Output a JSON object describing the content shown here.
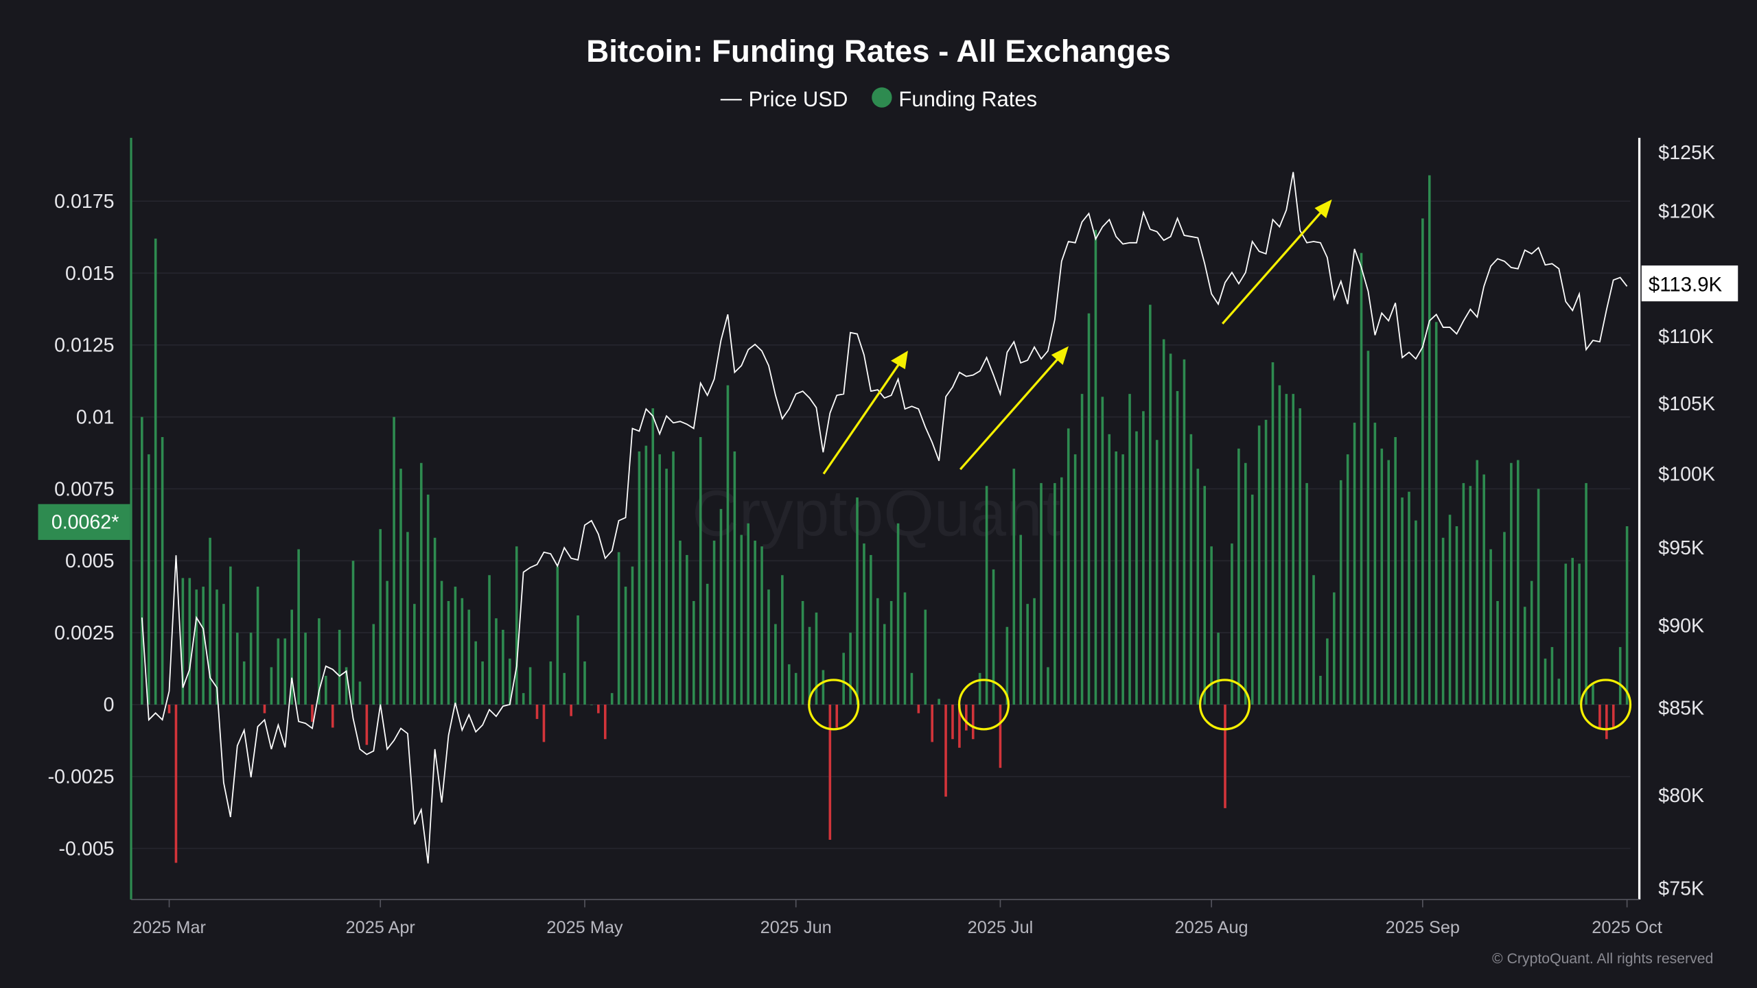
{
  "chart_data": {
    "type": "bar+line",
    "title": "Bitcoin: Funding Rates - All Exchanges",
    "legend": {
      "placement": "top-center",
      "entries": [
        "Price USD",
        "Funding Rates"
      ]
    },
    "series": [
      {
        "name": "Funding Rates",
        "type": "bar",
        "axis": "left",
        "color_positive": "#2e8b50",
        "color_negative": "#d2343a"
      },
      {
        "name": "Price USD",
        "type": "line",
        "axis": "right",
        "color": "#ffffff"
      }
    ],
    "left_axis": {
      "ticks": [
        0.0175,
        0.015,
        0.0125,
        0.01,
        0.0075,
        0.005,
        0.0025,
        0,
        -0.0025,
        -0.005
      ],
      "tick_labels": [
        "0.0175",
        "0.015",
        "0.0125",
        "0.01",
        "0.0075",
        "0.005",
        "0.0025",
        "0",
        "-0.0025",
        "-0.005"
      ],
      "range": [
        -0.0068,
        0.0194
      ]
    },
    "right_axis": {
      "scale": "log",
      "ticks": [
        125000,
        120000,
        110000,
        105000,
        100000,
        95000,
        90000,
        85000,
        80000,
        75000
      ],
      "tick_labels": [
        "$125K",
        "$120K",
        "$110K",
        "$105K",
        "$100K",
        "$95K",
        "$90K",
        "$85K",
        "$80K",
        "$75K"
      ],
      "range": [
        75000,
        125000
      ]
    },
    "x_axis": {
      "ticks": [
        "2025-03-01",
        "2025-04-01",
        "2025-05-01",
        "2025-06-01",
        "2025-07-01",
        "2025-08-01",
        "2025-09-01",
        "2025-10-01"
      ],
      "tick_labels": [
        "2025 Mar",
        "2025 Apr",
        "2025 May",
        "2025 Jun",
        "2025 Jul",
        "2025 Aug",
        "2025 Sep",
        "2025 Oct"
      ]
    },
    "grid": true,
    "current_funding_label": "0.0062*",
    "current_price_label": "$113.9K",
    "watermark": "CryptoQuant",
    "copyright": "© CryptoQuant. All rights reserved",
    "annotation_color": "#f5f000",
    "columns": [
      "date",
      "funding_rate",
      "price_usd"
    ],
    "points": [
      [
        "2025-02-25",
        0.01,
        90500
      ],
      [
        "2025-02-26",
        0.0087,
        84300
      ],
      [
        "2025-02-27",
        0.0162,
        84700
      ],
      [
        "2025-02-28",
        0.0093,
        84300
      ],
      [
        "2025-03-01",
        -0.0003,
        86000
      ],
      [
        "2025-03-02",
        -0.0055,
        94500
      ],
      [
        "2025-03-03",
        0.0044,
        86200
      ],
      [
        "2025-03-04",
        0.0044,
        87300
      ],
      [
        "2025-03-05",
        0.004,
        90500
      ],
      [
        "2025-03-06",
        0.0041,
        89800
      ],
      [
        "2025-03-07",
        0.0058,
        86800
      ],
      [
        "2025-03-08",
        0.004,
        86200
      ],
      [
        "2025-03-09",
        0.0035,
        80700
      ],
      [
        "2025-03-10",
        0.0048,
        78800
      ],
      [
        "2025-03-11",
        0.0025,
        82800
      ],
      [
        "2025-03-12",
        0.0015,
        83700
      ],
      [
        "2025-03-13",
        0.0025,
        81000
      ],
      [
        "2025-03-14",
        0.0041,
        83900
      ],
      [
        "2025-03-15",
        -0.0003,
        84300
      ],
      [
        "2025-03-16",
        0.0013,
        82600
      ],
      [
        "2025-03-17",
        0.0023,
        84000
      ],
      [
        "2025-03-18",
        0.0023,
        82700
      ],
      [
        "2025-03-19",
        0.0033,
        86800
      ],
      [
        "2025-03-20",
        0.0054,
        84200
      ],
      [
        "2025-03-21",
        0.0025,
        84100
      ],
      [
        "2025-03-22",
        -0.0006,
        83800
      ],
      [
        "2025-03-23",
        0.003,
        86000
      ],
      [
        "2025-03-24",
        0.001,
        87500
      ],
      [
        "2025-03-25",
        -0.0008,
        87300
      ],
      [
        "2025-03-26",
        0.0026,
        86900
      ],
      [
        "2025-03-27",
        0.0013,
        87200
      ],
      [
        "2025-03-28",
        0.005,
        84400
      ],
      [
        "2025-03-29",
        0.0008,
        82600
      ],
      [
        "2025-03-30",
        -0.0014,
        82300
      ],
      [
        "2025-03-31",
        0.0028,
        82500
      ],
      [
        "2025-04-01",
        0.0061,
        85200
      ],
      [
        "2025-04-02",
        0.0043,
        82600
      ],
      [
        "2025-04-03",
        0.01,
        83100
      ],
      [
        "2025-04-04",
        0.0082,
        83800
      ],
      [
        "2025-04-05",
        0.006,
        83500
      ],
      [
        "2025-04-06",
        0.0035,
        78400
      ],
      [
        "2025-04-07",
        0.0084,
        79200
      ],
      [
        "2025-04-08",
        0.0073,
        76300
      ],
      [
        "2025-04-09",
        0.0058,
        82600
      ],
      [
        "2025-04-10",
        0.0043,
        79600
      ],
      [
        "2025-04-11",
        0.0036,
        83400
      ],
      [
        "2025-04-12",
        0.0041,
        85300
      ],
      [
        "2025-04-13",
        0.0037,
        83700
      ],
      [
        "2025-04-14",
        0.0033,
        84600
      ],
      [
        "2025-04-15",
        0.0022,
        83600
      ],
      [
        "2025-04-16",
        0.0015,
        84000
      ],
      [
        "2025-04-17",
        0.0045,
        84900
      ],
      [
        "2025-04-18",
        0.003,
        84500
      ],
      [
        "2025-04-19",
        0.0026,
        85100
      ],
      [
        "2025-04-20",
        0.0016,
        85200
      ],
      [
        "2025-04-21",
        0.0055,
        87500
      ],
      [
        "2025-04-22",
        0.0004,
        93400
      ],
      [
        "2025-04-23",
        0.0013,
        93700
      ],
      [
        "2025-04-24",
        -0.0005,
        93900
      ],
      [
        "2025-04-25",
        -0.0013,
        94700
      ],
      [
        "2025-04-26",
        0.0015,
        94600
      ],
      [
        "2025-04-27",
        0.0048,
        93800
      ],
      [
        "2025-04-28",
        0.0011,
        95000
      ],
      [
        "2025-04-29",
        -0.0004,
        94300
      ],
      [
        "2025-04-30",
        0.0031,
        94200
      ],
      [
        "2025-05-01",
        0.0015,
        96500
      ],
      [
        "2025-05-02",
        0.0,
        96800
      ],
      [
        "2025-05-03",
        -0.0003,
        95900
      ],
      [
        "2025-05-04",
        -0.0012,
        94300
      ],
      [
        "2025-05-05",
        0.0004,
        94800
      ],
      [
        "2025-05-06",
        0.0053,
        96800
      ],
      [
        "2025-05-07",
        0.0041,
        97000
      ],
      [
        "2025-05-08",
        0.0048,
        103200
      ],
      [
        "2025-05-09",
        0.0088,
        103000
      ],
      [
        "2025-05-10",
        0.009,
        104600
      ],
      [
        "2025-05-11",
        0.0103,
        104100
      ],
      [
        "2025-05-12",
        0.0087,
        102800
      ],
      [
        "2025-05-13",
        0.0082,
        104100
      ],
      [
        "2025-05-14",
        0.0088,
        103600
      ],
      [
        "2025-05-15",
        0.0057,
        103700
      ],
      [
        "2025-05-16",
        0.0052,
        103500
      ],
      [
        "2025-05-17",
        0.0036,
        103200
      ],
      [
        "2025-05-18",
        0.0093,
        106500
      ],
      [
        "2025-05-19",
        0.0042,
        105600
      ],
      [
        "2025-05-20",
        0.0057,
        106800
      ],
      [
        "2025-05-21",
        0.0068,
        109700
      ],
      [
        "2025-05-22",
        0.0111,
        111700
      ],
      [
        "2025-05-23",
        0.0088,
        107300
      ],
      [
        "2025-05-24",
        0.0059,
        107800
      ],
      [
        "2025-05-25",
        0.0063,
        109000
      ],
      [
        "2025-05-26",
        0.0057,
        109400
      ],
      [
        "2025-05-27",
        0.0055,
        108900
      ],
      [
        "2025-05-28",
        0.004,
        107800
      ],
      [
        "2025-05-29",
        0.0028,
        105600
      ],
      [
        "2025-05-30",
        0.0045,
        103900
      ],
      [
        "2025-05-31",
        0.0014,
        104600
      ],
      [
        "2025-06-01",
        0.0011,
        105700
      ],
      [
        "2025-06-02",
        0.0036,
        105900
      ],
      [
        "2025-06-03",
        0.0027,
        105400
      ],
      [
        "2025-06-04",
        0.0032,
        104700
      ],
      [
        "2025-06-05",
        0.0012,
        101500
      ],
      [
        "2025-06-06",
        -0.0047,
        104300
      ],
      [
        "2025-06-07",
        -0.0008,
        105600
      ],
      [
        "2025-06-08",
        0.0018,
        105700
      ],
      [
        "2025-06-09",
        0.0025,
        110300
      ],
      [
        "2025-06-10",
        0.0072,
        110200
      ],
      [
        "2025-06-11",
        0.0056,
        108600
      ],
      [
        "2025-06-12",
        0.0052,
        105900
      ],
      [
        "2025-06-13",
        0.0037,
        106000
      ],
      [
        "2025-06-14",
        0.0028,
        105400
      ],
      [
        "2025-06-15",
        0.0036,
        105600
      ],
      [
        "2025-06-16",
        0.0063,
        106800
      ],
      [
        "2025-06-17",
        0.0039,
        104600
      ],
      [
        "2025-06-18",
        0.0011,
        104800
      ],
      [
        "2025-06-19",
        -0.0003,
        104600
      ],
      [
        "2025-06-20",
        0.0033,
        103300
      ],
      [
        "2025-06-21",
        -0.0013,
        102200
      ],
      [
        "2025-06-22",
        0.0002,
        100900
      ],
      [
        "2025-06-23",
        -0.0032,
        105500
      ],
      [
        "2025-06-24",
        -0.0012,
        106200
      ],
      [
        "2025-06-25",
        -0.0015,
        107300
      ],
      [
        "2025-06-26",
        -0.0009,
        107000
      ],
      [
        "2025-06-27",
        -0.0012,
        107100
      ],
      [
        "2025-06-28",
        0.0011,
        107400
      ],
      [
        "2025-06-29",
        0.0076,
        108400
      ],
      [
        "2025-06-30",
        0.0047,
        107100
      ],
      [
        "2025-07-01",
        -0.0022,
        105700
      ],
      [
        "2025-07-02",
        0.0027,
        108800
      ],
      [
        "2025-07-03",
        0.0082,
        109600
      ],
      [
        "2025-07-04",
        0.0059,
        108000
      ],
      [
        "2025-07-05",
        0.0035,
        108200
      ],
      [
        "2025-07-06",
        0.0037,
        109200
      ],
      [
        "2025-07-07",
        0.0077,
        108300
      ],
      [
        "2025-07-08",
        0.0013,
        108900
      ],
      [
        "2025-07-09",
        0.0077,
        111300
      ],
      [
        "2025-07-10",
        0.0079,
        115900
      ],
      [
        "2025-07-11",
        0.0096,
        117500
      ],
      [
        "2025-07-12",
        0.0087,
        117400
      ],
      [
        "2025-07-13",
        0.0108,
        119100
      ],
      [
        "2025-07-14",
        0.0136,
        119800
      ],
      [
        "2025-07-15",
        0.0165,
        117700
      ],
      [
        "2025-07-16",
        0.0107,
        118700
      ],
      [
        "2025-07-17",
        0.0094,
        119300
      ],
      [
        "2025-07-18",
        0.0088,
        117900
      ],
      [
        "2025-07-19",
        0.0087,
        117300
      ],
      [
        "2025-07-20",
        0.0108,
        117400
      ],
      [
        "2025-07-21",
        0.0095,
        117400
      ],
      [
        "2025-07-22",
        0.0102,
        119900
      ],
      [
        "2025-07-23",
        0.0139,
        118500
      ],
      [
        "2025-07-24",
        0.0092,
        118300
      ],
      [
        "2025-07-25",
        0.0127,
        117600
      ],
      [
        "2025-07-26",
        0.0122,
        117900
      ],
      [
        "2025-07-27",
        0.0109,
        119400
      ],
      [
        "2025-07-28",
        0.012,
        118000
      ],
      [
        "2025-07-29",
        0.0094,
        117900
      ],
      [
        "2025-07-30",
        0.0082,
        117800
      ],
      [
        "2025-07-31",
        0.0076,
        115700
      ],
      [
        "2025-08-01",
        0.0055,
        113300
      ],
      [
        "2025-08-02",
        0.0025,
        112500
      ],
      [
        "2025-08-03",
        -0.0036,
        114200
      ],
      [
        "2025-08-04",
        0.0056,
        115000
      ],
      [
        "2025-08-05",
        0.0089,
        114100
      ],
      [
        "2025-08-06",
        0.0084,
        115000
      ],
      [
        "2025-08-07",
        0.0073,
        117500
      ],
      [
        "2025-08-08",
        0.0097,
        116700
      ],
      [
        "2025-08-09",
        0.0099,
        116500
      ],
      [
        "2025-08-10",
        0.0119,
        119300
      ],
      [
        "2025-08-11",
        0.0111,
        118700
      ],
      [
        "2025-08-12",
        0.0108,
        120100
      ],
      [
        "2025-08-13",
        0.0108,
        123300
      ],
      [
        "2025-08-14",
        0.0103,
        118400
      ],
      [
        "2025-08-15",
        0.0077,
        117400
      ],
      [
        "2025-08-16",
        0.0045,
        117500
      ],
      [
        "2025-08-17",
        0.001,
        117400
      ],
      [
        "2025-08-18",
        0.0023,
        116200
      ],
      [
        "2025-08-19",
        0.0039,
        112900
      ],
      [
        "2025-08-20",
        0.0078,
        114300
      ],
      [
        "2025-08-21",
        0.0087,
        112500
      ],
      [
        "2025-08-22",
        0.0098,
        116900
      ],
      [
        "2025-08-23",
        0.0157,
        115400
      ],
      [
        "2025-08-24",
        0.0123,
        113500
      ],
      [
        "2025-08-25",
        0.0098,
        110100
      ],
      [
        "2025-08-26",
        0.0089,
        111800
      ],
      [
        "2025-08-27",
        0.0085,
        111200
      ],
      [
        "2025-08-28",
        0.0093,
        112600
      ],
      [
        "2025-08-29",
        0.0072,
        108400
      ],
      [
        "2025-08-30",
        0.0074,
        108800
      ],
      [
        "2025-08-31",
        0.0064,
        108300
      ],
      [
        "2025-09-01",
        0.0169,
        109200
      ],
      [
        "2025-09-02",
        0.0184,
        111200
      ],
      [
        "2025-09-03",
        0.0133,
        111700
      ],
      [
        "2025-09-04",
        0.0058,
        110700
      ],
      [
        "2025-09-05",
        0.0066,
        110700
      ],
      [
        "2025-09-06",
        0.0062,
        110200
      ],
      [
        "2025-09-07",
        0.0077,
        111200
      ],
      [
        "2025-09-08",
        0.0076,
        112100
      ],
      [
        "2025-09-09",
        0.0085,
        111500
      ],
      [
        "2025-09-10",
        0.008,
        113900
      ],
      [
        "2025-09-11",
        0.0054,
        115500
      ],
      [
        "2025-09-12",
        0.0036,
        116100
      ],
      [
        "2025-09-13",
        0.006,
        115900
      ],
      [
        "2025-09-14",
        0.0084,
        115400
      ],
      [
        "2025-09-15",
        0.0085,
        115300
      ],
      [
        "2025-09-16",
        0.0034,
        116800
      ],
      [
        "2025-09-17",
        0.0043,
        116500
      ],
      [
        "2025-09-18",
        0.0075,
        117000
      ],
      [
        "2025-09-19",
        0.0016,
        115600
      ],
      [
        "2025-09-20",
        0.002,
        115700
      ],
      [
        "2025-09-21",
        0.0009,
        115300
      ],
      [
        "2025-09-22",
        0.0049,
        112700
      ],
      [
        "2025-09-23",
        0.0051,
        112000
      ],
      [
        "2025-09-24",
        0.0049,
        113300
      ],
      [
        "2025-09-25",
        0.0077,
        109000
      ],
      [
        "2025-09-26",
        0.0007,
        109700
      ],
      [
        "2025-09-27",
        -0.0008,
        109600
      ],
      [
        "2025-09-28",
        -0.0012,
        112100
      ],
      [
        "2025-09-29",
        -0.0008,
        114400
      ],
      [
        "2025-09-30",
        0.002,
        114600
      ],
      [
        "2025-10-01",
        0.0062,
        113900
      ]
    ]
  }
}
